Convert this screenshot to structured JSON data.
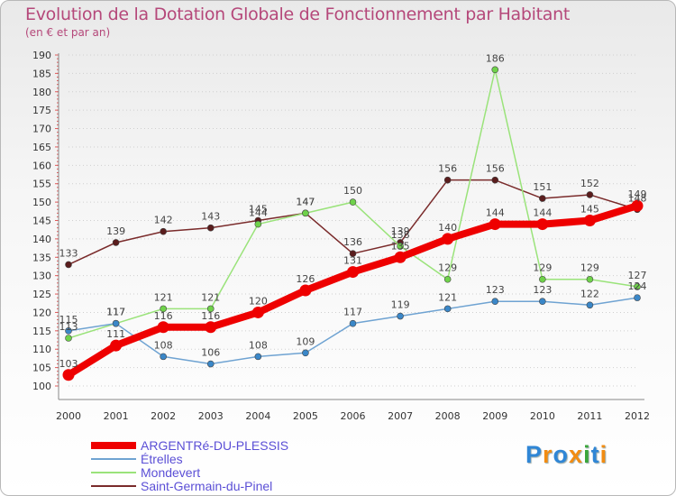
{
  "header": {
    "title": "Evolution de la Dotation Globale de Fonctionnement par Habitant",
    "subtitle": "(en € et par an)"
  },
  "logo": {
    "text": "Proxiti",
    "colors": [
      "#2f86d6",
      "#f28c12",
      "#2f86d6",
      "#f28c12",
      "#3aa63a",
      "#2f86d6",
      "#f28c12"
    ]
  },
  "chart_data": {
    "type": "line",
    "title": "Evolution de la Dotation Globale de Fonctionnement par Habitant",
    "subtitle": "(en € et par an)",
    "xlabel": "",
    "ylabel": "",
    "ylim": [
      100,
      190
    ],
    "ytick_step": 5,
    "grid": "dotted-horizontal",
    "legend_position": "bottom-left",
    "x": [
      "2000",
      "2001",
      "2002",
      "2003",
      "2004",
      "2005",
      "2006",
      "2007",
      "2008",
      "2009",
      "2010",
      "2011",
      "2012"
    ],
    "series": [
      {
        "name": "ARGENTRé-DU-PLESSIS",
        "color": "#ee0000",
        "thick": true,
        "values": [
          103,
          111,
          116,
          116,
          120,
          126,
          131,
          135,
          140,
          144,
          144,
          145,
          149
        ],
        "labels": [
          "103",
          "111",
          "116",
          "116",
          "120",
          "126",
          "131",
          "135",
          "140",
          "144",
          "144",
          "145",
          "149"
        ]
      },
      {
        "name": "Étrelles",
        "color": "#6fa3d2",
        "marker": "#3a87c8",
        "thick": false,
        "values": [
          115,
          117,
          108,
          106,
          108,
          109,
          117,
          119,
          121,
          123,
          123,
          122,
          124
        ],
        "labels": [
          "115",
          "117",
          "108",
          "106",
          "108",
          "109",
          "117",
          "119",
          "121",
          "123",
          "123",
          "122",
          "124"
        ]
      },
      {
        "name": "Mondevert",
        "color": "#9ae37a",
        "marker": "#6fd24a",
        "thick": false,
        "values": [
          113,
          117,
          121,
          121,
          144,
          147,
          150,
          138,
          129,
          186,
          129,
          129,
          127
        ],
        "labels": [
          "113",
          "117",
          "121",
          "121",
          "144",
          "147",
          "150",
          "138",
          "129",
          "186",
          "129",
          "129",
          "127"
        ]
      },
      {
        "name": "Saint-Germain-du-Pinel",
        "color": "#7a2b2b",
        "marker": "#5a1d1d",
        "thick": false,
        "values": [
          133,
          139,
          142,
          143,
          145,
          147,
          136,
          139,
          156,
          156,
          151,
          152,
          148
        ],
        "labels": [
          "133",
          "139",
          "142",
          "143",
          "145",
          "147",
          "136",
          "139",
          "156",
          "156",
          "151",
          "152",
          "148"
        ]
      }
    ]
  }
}
